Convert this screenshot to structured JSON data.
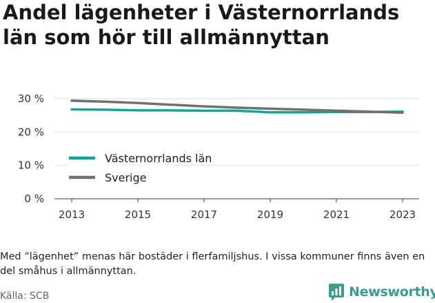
{
  "title": "Andel lägenheter i Västernorrlands län som hör till allmännyttan",
  "note": "Med ”lägenhet” menas här bostäder i flerfamiljshus. I vissa kommuner finns även en del småhus i allmännyttan.",
  "source": "Källa: SCB",
  "brand": {
    "name": "Newsworthy",
    "color": "#3c9a8e"
  },
  "chart_data": {
    "type": "line",
    "x": [
      2013,
      2014,
      2015,
      2016,
      2017,
      2018,
      2019,
      2020,
      2021,
      2022,
      2023
    ],
    "xticks": [
      2013,
      2015,
      2017,
      2019,
      2021,
      2023
    ],
    "xtick_labels": [
      "2013",
      "2015",
      "2017",
      "2019",
      "2021",
      "2023"
    ],
    "yticks": [
      0,
      10,
      20,
      30
    ],
    "ytick_labels": [
      "0 %",
      "10 %",
      "20 %",
      "30 %"
    ],
    "ylim": [
      0,
      30
    ],
    "grid": true,
    "legend_position": "left",
    "series": [
      {
        "name": "Västernorrlands län",
        "color": "#13a59a",
        "values": [
          26.8,
          26.7,
          26.5,
          26.5,
          26.4,
          26.4,
          25.9,
          25.9,
          26.0,
          26.0,
          26.1
        ]
      },
      {
        "name": "Sverige",
        "color": "#707070",
        "values": [
          29.4,
          29.1,
          28.7,
          28.2,
          27.7,
          27.3,
          27.0,
          26.7,
          26.4,
          26.1,
          25.8
        ]
      }
    ]
  }
}
